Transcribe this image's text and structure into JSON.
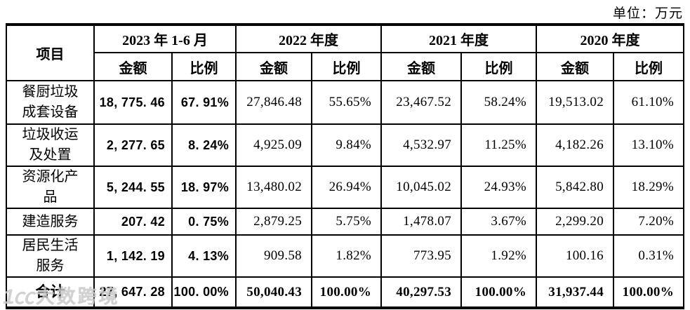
{
  "unit_label": "单位：万元",
  "watermark": {
    "logo": "1㏄",
    "text": "大数跨境"
  },
  "table": {
    "item_header": "项目",
    "col_groups": [
      {
        "label": "2023 年 1-6 月",
        "amount": "金额",
        "ratio": "比例"
      },
      {
        "label": "2022 年度",
        "amount": "金额",
        "ratio": "比例"
      },
      {
        "label": "2021 年度",
        "amount": "金额",
        "ratio": "比例"
      },
      {
        "label": "2020 年度",
        "amount": "金额",
        "ratio": "比例"
      }
    ],
    "rows": [
      {
        "item": "餐厨垃圾\n成套设备",
        "cells": [
          "18, 775. 46",
          "67. 91%",
          "27,846.48",
          "55.65%",
          "23,467.52",
          "58.24%",
          "19,513.02",
          "61.10%"
        ]
      },
      {
        "item": "垃圾收运\n及处置",
        "cells": [
          "2, 277. 65",
          "8. 24%",
          "4,925.09",
          "9.84%",
          "4,532.97",
          "11.25%",
          "4,182.26",
          "13.10%"
        ]
      },
      {
        "item": "资源化产\n品",
        "cells": [
          "5, 244. 55",
          "18. 97%",
          "13,480.02",
          "26.94%",
          "10,045.02",
          "24.93%",
          "5,842.80",
          "18.29%"
        ]
      },
      {
        "item": "建造服务",
        "cells": [
          "207. 42",
          "0. 75%",
          "2,879.25",
          "5.75%",
          "1,478.07",
          "3.67%",
          "2,299.20",
          "7.20%"
        ]
      },
      {
        "item": "居民生活\n服务",
        "cells": [
          "1, 142. 19",
          "4. 13%",
          "909.58",
          "1.82%",
          "773.95",
          "1.92%",
          "100.16",
          "0.31%"
        ]
      },
      {
        "item": "合计",
        "cells": [
          "27, 647. 28",
          "100. 00%",
          "50,040.43",
          "100.00%",
          "40,297.53",
          "100.00%",
          "31,937.44",
          "100.00%"
        ]
      }
    ]
  }
}
